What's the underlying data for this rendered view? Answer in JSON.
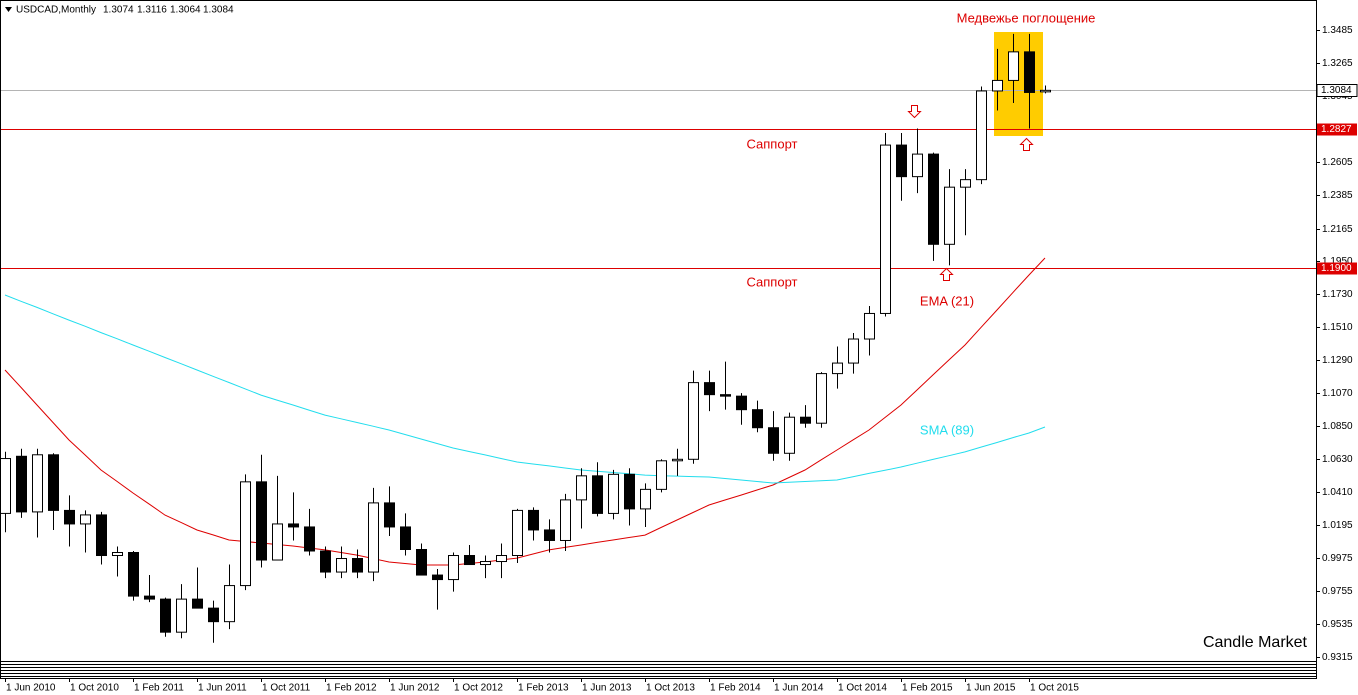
{
  "chart_data": {
    "type": "candlestick",
    "symbol": "USDCAD,Monthly",
    "categories": [
      "1 Jun 2010",
      null,
      null,
      null,
      "1 Oct 2010",
      null,
      null,
      null,
      "1 Feb 2011",
      null,
      null,
      null,
      "1 Jun 2011",
      null,
      null,
      null,
      "1 Oct 2011",
      null,
      null,
      null,
      "1 Feb 2012",
      null,
      null,
      null,
      "1 Jun 2012",
      null,
      null,
      null,
      "1 Oct 2012",
      null,
      null,
      null,
      "1 Feb 2013",
      null,
      null,
      null,
      "1 Jun 2013",
      null,
      null,
      null,
      "1 Oct 2013",
      null,
      null,
      null,
      "1 Feb 2014",
      null,
      null,
      null,
      "1 Jun 2014",
      null,
      null,
      null,
      "1 Oct 2014",
      null,
      null,
      null,
      "1 Feb 2015",
      null,
      null,
      null,
      "1 Jun 2015",
      null,
      null,
      null,
      "1 Oct 2015",
      null
    ],
    "open": [
      1.027,
      1.065,
      1.028,
      1.066,
      1.029,
      1.02,
      1.026,
      0.999,
      1.001,
      0.972,
      0.97,
      0.948,
      0.97,
      0.964,
      0.955,
      0.979,
      1.048,
      0.996,
      1.02,
      1.018,
      1.002,
      0.988,
      0.997,
      0.988,
      1.034,
      1.018,
      1.003,
      0.986,
      0.983,
      0.999,
      0.993,
      0.995,
      0.999,
      1.029,
      1.016,
      1.009,
      1.036,
      1.052,
      1.027,
      1.053,
      1.03,
      1.043,
      1.062,
      1.063,
      1.114,
      1.106,
      1.105,
      1.096,
      1.084,
      1.067,
      1.091,
      1.087,
      1.12,
      1.127,
      1.143,
      1.16,
      1.272,
      1.251,
      1.266,
      1.206,
      1.244,
      1.249,
      1.308,
      1.315,
      1.334,
      1.3074
    ],
    "high": [
      1.068,
      1.07,
      1.07,
      1.067,
      1.039,
      1.029,
      1.028,
      1.005,
      1.002,
      0.986,
      0.971,
      0.98,
      0.991,
      0.969,
      0.993,
      1.053,
      1.066,
      1.052,
      1.041,
      1.03,
      1.005,
      1.005,
      1.003,
      1.044,
      1.045,
      1.027,
      1.007,
      0.99,
      1.001,
      1.006,
      0.999,
      1.007,
      1.03,
      1.031,
      1.023,
      1.04,
      1.057,
      1.061,
      1.056,
      1.057,
      1.047,
      1.063,
      1.07,
      1.122,
      1.122,
      1.128,
      1.107,
      1.102,
      1.095,
      1.094,
      1.099,
      1.121,
      1.138,
      1.147,
      1.165,
      1.28,
      1.28,
      1.283,
      1.267,
      1.256,
      1.256,
      1.311,
      1.336,
      1.346,
      1.346,
      1.3116
    ],
    "low": [
      1.0145,
      1.024,
      1.011,
      1.016,
      1.005,
      1.001,
      0.993,
      0.985,
      0.969,
      0.968,
      0.945,
      0.944,
      0.964,
      0.941,
      0.95,
      0.976,
      0.991,
      0.999,
      1.009,
      0.999,
      0.984,
      0.984,
      0.984,
      0.982,
      1.012,
      0.999,
      0.986,
      0.963,
      0.975,
      0.993,
      0.984,
      0.984,
      0.994,
      1.009,
      1.001,
      1.002,
      1.017,
      1.025,
      1.023,
      1.019,
      1.018,
      1.041,
      1.052,
      1.06,
      1.095,
      1.096,
      1.086,
      1.081,
      1.062,
      1.062,
      1.084,
      1.084,
      1.11,
      1.12,
      1.132,
      1.158,
      1.235,
      1.24,
      1.195,
      1.192,
      1.212,
      1.246,
      1.295,
      1.3,
      1.283,
      1.3064
    ],
    "close": [
      1.0635,
      1.028,
      1.066,
      1.029,
      1.02,
      1.026,
      0.999,
      1.001,
      0.972,
      0.97,
      0.948,
      0.97,
      0.964,
      0.955,
      0.979,
      1.048,
      0.996,
      1.02,
      1.018,
      1.002,
      0.988,
      0.997,
      0.988,
      1.034,
      1.018,
      1.003,
      0.986,
      0.983,
      0.999,
      0.993,
      0.995,
      0.999,
      1.029,
      1.016,
      1.009,
      1.036,
      1.052,
      1.027,
      1.053,
      1.03,
      1.043,
      1.062,
      1.063,
      1.114,
      1.106,
      1.105,
      1.096,
      1.084,
      1.067,
      1.091,
      1.087,
      1.12,
      1.127,
      1.143,
      1.16,
      1.272,
      1.251,
      1.266,
      1.206,
      1.244,
      1.249,
      1.308,
      1.315,
      1.334,
      1.307,
      1.3084
    ],
    "up_color": "#ffffff",
    "down_color": "#000000",
    "overlays": [
      {
        "name": "EMA (21)",
        "color": "#dd0000",
        "values": [
          1.1224,
          1.1108,
          1.0991,
          1.0875,
          1.0758,
          1.0659,
          1.0559,
          1.0483,
          1.0406,
          1.0333,
          1.0259,
          1.021,
          1.016,
          1.0127,
          1.0093,
          1.0083,
          1.0073,
          1.0063,
          1.0053,
          1.004,
          1.0027,
          1.001,
          0.9993,
          0.997,
          0.9947,
          0.9937,
          0.9927,
          0.9927,
          0.9927,
          0.9937,
          0.9947,
          0.996,
          0.9973,
          1.0,
          1.0027,
          1.0044,
          1.006,
          1.0077,
          1.0093,
          1.011,
          1.0126,
          1.0176,
          1.0226,
          1.0276,
          1.0326,
          1.0359,
          1.0392,
          1.0426,
          1.0459,
          1.0509,
          1.0559,
          1.0626,
          1.0692,
          1.0759,
          1.0825,
          1.0908,
          1.0991,
          1.1091,
          1.1191,
          1.1291,
          1.139,
          1.1507,
          1.1623,
          1.174,
          1.1856,
          1.1969
        ]
      },
      {
        "name": "SMA (89)",
        "color": "#22dded",
        "values": [
          1.1723,
          1.1681,
          1.164,
          1.1598,
          1.1556,
          1.1515,
          1.1473,
          1.1432,
          1.139,
          1.1349,
          1.1307,
          1.1266,
          1.1224,
          1.1182,
          1.1141,
          1.1099,
          1.1057,
          1.1024,
          1.0991,
          1.0957,
          1.0924,
          1.0899,
          1.0875,
          1.085,
          1.0825,
          1.0795,
          1.0765,
          1.0735,
          1.0705,
          1.0682,
          1.0659,
          1.0635,
          1.0612,
          1.0599,
          1.0586,
          1.0572,
          1.0559,
          1.0551,
          1.0542,
          1.0534,
          1.0525,
          1.052,
          1.0518,
          1.0515,
          1.0512,
          1.0502,
          1.0492,
          1.0482,
          1.0472,
          1.0477,
          1.0482,
          1.0487,
          1.0492,
          1.0514,
          1.0536,
          1.0557,
          1.0579,
          1.0604,
          1.0629,
          1.0654,
          1.0679,
          1.0711,
          1.0742,
          1.0774,
          1.0805,
          1.0845
        ]
      }
    ],
    "levels": [
      1.2827,
      {
        "value": 1.19,
        "label": "1.1900"
      }
    ],
    "level_color": "#dd0000",
    "ylim": [
      0.9295,
      1.3665
    ],
    "yticks": [
      1.3485,
      1.3265,
      1.3045,
      1.2605,
      1.2385,
      1.2165,
      {
        "value": 1.195,
        "label": "1.1950"
      },
      {
        "value": 1.173,
        "label": "1.1730"
      },
      {
        "value": 1.151,
        "label": "1.1510"
      },
      {
        "value": 1.129,
        "label": "1.1290"
      },
      {
        "value": 1.107,
        "label": "1.1070"
      },
      {
        "value": 1.085,
        "label": "1.0850"
      },
      {
        "value": 1.063,
        "label": "1.0630"
      },
      {
        "value": 1.041,
        "label": "1.0410"
      },
      1.0195,
      0.9975,
      0.9755,
      0.9535,
      0.9315
    ],
    "annotations": [
      "Медвежье поглощение",
      "Саппорт",
      "Саппорт"
    ],
    "watermark": "Candle Market"
  }
}
